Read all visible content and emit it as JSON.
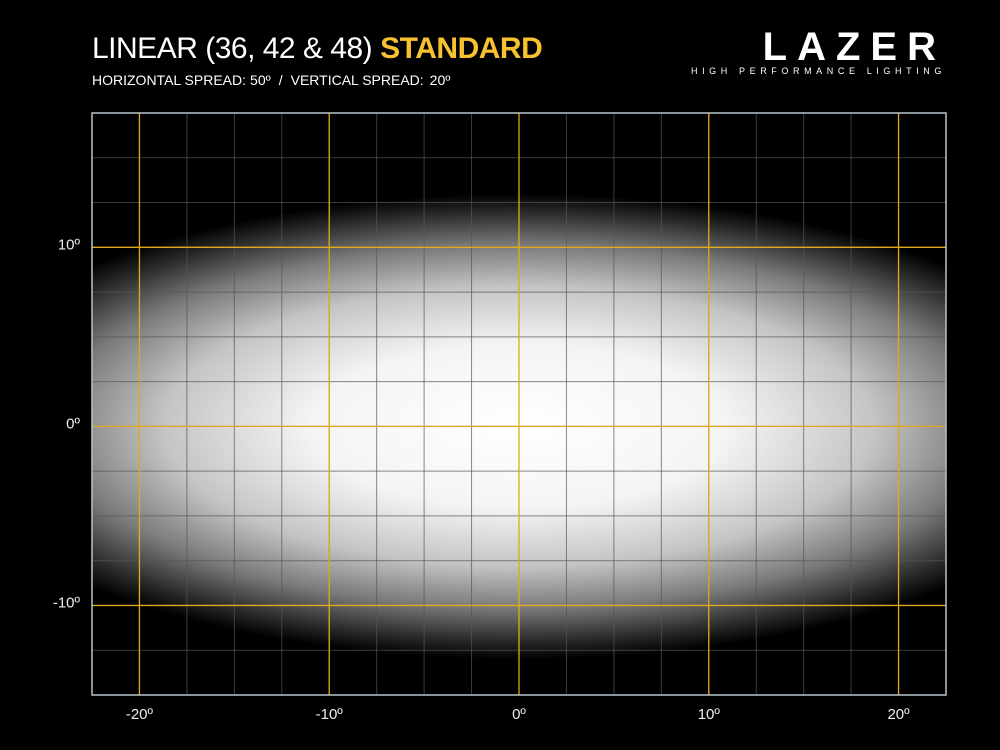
{
  "chart_data": {
    "type": "beam",
    "title": "LINEAR (36, 42 & 48)",
    "title_highlight": "STANDARD",
    "brand": "LAZER",
    "brand_tagline": "HIGH PERFORMANCE LIGHTING",
    "spread_names": [
      "HORIZONTAL SPREAD:",
      "VERTICAL SPREAD:"
    ],
    "values": [
      50,
      20
    ],
    "value_labels": [
      "50º",
      "20º"
    ],
    "separator": "/",
    "xlim": [
      -22.5,
      22.5
    ],
    "ylim": [
      -15,
      17.5
    ],
    "xticks": [
      {
        "value": -20,
        "label": "-20º"
      },
      {
        "value": -10,
        "label": "-10º"
      },
      {
        "value": 0,
        "label": "0º"
      },
      {
        "value": 10,
        "label": "10º"
      },
      {
        "value": 20,
        "label": "20º"
      }
    ],
    "yticks": [
      {
        "value": -10,
        "label": "-10º"
      },
      {
        "value": 0,
        "label": "0º"
      },
      {
        "value": 10,
        "label": "10º"
      }
    ],
    "minor_grid_step": 2.5,
    "grid_color": "#e0aa1c",
    "highlight_color": "#f7c230"
  }
}
